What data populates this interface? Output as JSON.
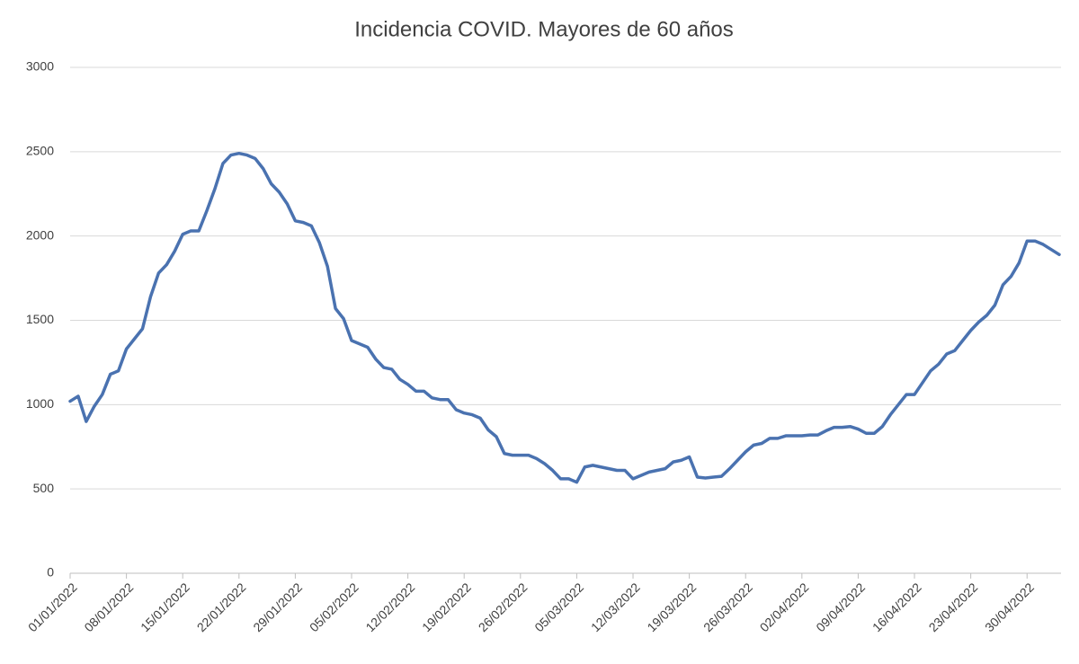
{
  "chart_data": {
    "type": "line",
    "title": "Incidencia COVID. Mayores de 60 años",
    "categories": [
      "01/01/2022",
      null,
      null,
      null,
      null,
      null,
      null,
      "08/01/2022",
      null,
      null,
      null,
      null,
      null,
      null,
      "15/01/2022",
      null,
      null,
      null,
      null,
      null,
      null,
      "22/01/2022",
      null,
      null,
      null,
      null,
      null,
      null,
      "29/01/2022",
      null,
      null,
      null,
      null,
      null,
      null,
      "05/02/2022",
      null,
      null,
      null,
      null,
      null,
      null,
      "12/02/2022",
      null,
      null,
      null,
      null,
      null,
      null,
      "19/02/2022",
      null,
      null,
      null,
      null,
      null,
      null,
      "26/02/2022",
      null,
      null,
      null,
      null,
      null,
      null,
      "05/03/2022",
      null,
      null,
      null,
      null,
      null,
      null,
      "12/03/2022",
      null,
      null,
      null,
      null,
      null,
      null,
      "19/03/2022",
      null,
      null,
      null,
      null,
      null,
      null,
      "26/03/2022",
      null,
      null,
      null,
      null,
      null,
      null,
      "02/04/2022",
      null,
      null,
      null,
      null,
      null,
      null,
      "09/04/2022",
      null,
      null,
      null,
      null,
      null,
      null,
      "16/04/2022",
      null,
      null,
      null,
      null,
      null,
      null,
      "23/04/2022",
      null,
      null,
      null,
      null,
      null,
      null,
      "30/04/2022",
      null,
      null,
      null,
      null
    ],
    "values": [
      1020,
      1050,
      900,
      990,
      1060,
      1180,
      1200,
      1330,
      1390,
      1450,
      1640,
      1780,
      1830,
      1910,
      2010,
      2030,
      2030,
      2150,
      2280,
      2430,
      2480,
      2490,
      2480,
      2460,
      2400,
      2310,
      2260,
      2190,
      2090,
      2080,
      2060,
      1960,
      1820,
      1570,
      1510,
      1380,
      1360,
      1340,
      1270,
      1220,
      1210,
      1150,
      1120,
      1080,
      1080,
      1040,
      1030,
      1030,
      970,
      950,
      940,
      920,
      850,
      810,
      710,
      700,
      700,
      700,
      680,
      650,
      610,
      560,
      560,
      540,
      630,
      640,
      630,
      620,
      610,
      610,
      560,
      580,
      600,
      610,
      620,
      660,
      670,
      690,
      570,
      565,
      570,
      575,
      620,
      670,
      720,
      760,
      770,
      800,
      800,
      815,
      815,
      815,
      820,
      820,
      845,
      865,
      865,
      870,
      855,
      830,
      830,
      870,
      940,
      1000,
      1060,
      1060,
      1130,
      1200,
      1240,
      1300,
      1320,
      1380,
      1440,
      1490,
      1530,
      1590,
      1710,
      1760,
      1840,
      1970,
      1970,
      1950,
      1920,
      1890
    ],
    "color": "#4a72b0",
    "ylim": [
      0,
      3000
    ],
    "yticks": [
      0,
      500,
      1000,
      1500,
      2000,
      2500,
      3000
    ],
    "grid": true
  }
}
